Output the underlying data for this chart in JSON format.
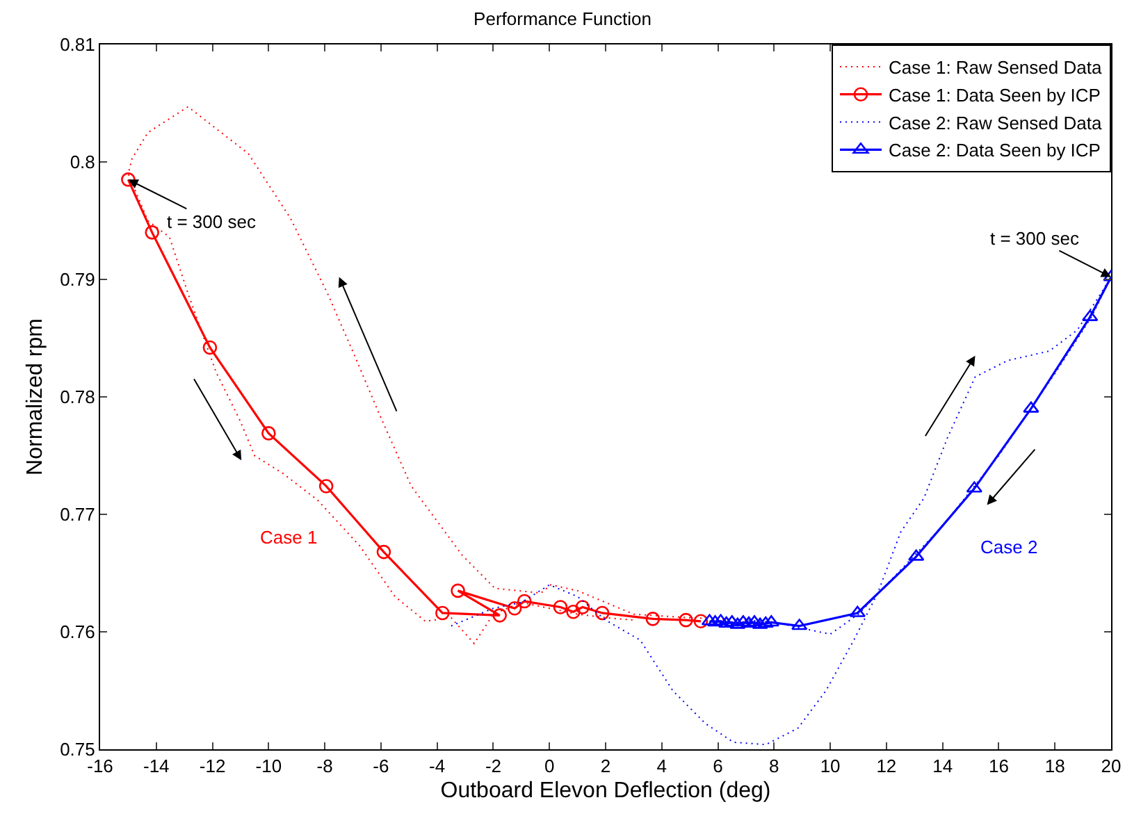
{
  "chart_data": {
    "type": "line",
    "title": "Performance Function",
    "xlabel": "Outboard Elevon Deflection (deg)",
    "ylabel": "Normalized rpm",
    "xlim": [
      -16,
      20
    ],
    "xticks": [
      -16,
      -14,
      -12,
      -10,
      -8,
      -6,
      -4,
      -2,
      0,
      2,
      4,
      6,
      8,
      10,
      12,
      14,
      16,
      18,
      20
    ],
    "ylim": [
      0.75,
      0.81
    ],
    "yticks": [
      0.75,
      0.76,
      0.77,
      0.78,
      0.79,
      0.8,
      0.81
    ],
    "grid": false,
    "legend": "top right",
    "series": [
      {
        "name": "Case 1: Raw Sensed Data",
        "color": "#ff0000",
        "line_style": "dotted",
        "marker": "none",
        "x": [
          7,
          5,
          3,
          1,
          0.05,
          -0.3,
          -1.94,
          -3.1,
          -4.92,
          -6.07,
          -6.9,
          -7.9,
          -9.22,
          -10.72,
          -12.87,
          -14.3,
          -14.86,
          -15,
          -14.3,
          -13.53,
          -12.87,
          -11.87,
          -11.04,
          -10.5,
          -9.5,
          -8.25,
          -6.75,
          -5.5,
          -4.42,
          -3.5,
          -2.68,
          -2,
          -1,
          0,
          1,
          2,
          3
        ],
        "values": [
          0.761,
          0.7612,
          0.7615,
          0.7635,
          0.764,
          0.7633,
          0.7637,
          0.7665,
          0.7724,
          0.7786,
          0.7833,
          0.7888,
          0.7952,
          0.8007,
          0.8047,
          0.8025,
          0.8003,
          0.799,
          0.795,
          0.7936,
          0.7888,
          0.7821,
          0.7781,
          0.775,
          0.7735,
          0.7712,
          0.7673,
          0.763,
          0.7609,
          0.7612,
          0.759,
          0.7615,
          0.7625,
          0.762,
          0.7615,
          0.7612,
          0.761
        ]
      },
      {
        "name": "Case 1: Data Seen by ICP",
        "color": "#ff0000",
        "line_style": "solid",
        "marker": "circle",
        "x": [
          5.39,
          4.86,
          3.68,
          1.88,
          1.18,
          0.85,
          0.39,
          -0.89,
          -1.24,
          -3.26,
          -1.77,
          -3.81,
          -5.9,
          -7.95,
          -10,
          -12.09,
          -14.15,
          -15
        ],
        "values": [
          0.7609,
          0.761,
          0.7611,
          0.7616,
          0.7621,
          0.7617,
          0.7621,
          0.7626,
          0.762,
          0.7635,
          0.7614,
          0.7616,
          0.7668,
          0.7724,
          0.7769,
          0.7842,
          0.794,
          0.7985
        ]
      },
      {
        "name": "Case 2: Raw Sensed Data",
        "color": "#0000ff",
        "line_style": "dotted",
        "marker": "none",
        "x": [
          -3.5,
          -2,
          -1,
          0,
          1,
          2,
          2.93,
          3.23,
          4.39,
          5.55,
          6.55,
          7.71,
          8.85,
          9.85,
          10.84,
          11.69,
          12.51,
          13.34,
          14.17,
          15.16,
          16.32,
          17.8,
          18.8,
          19.63,
          20,
          19.3,
          18,
          17,
          16,
          15,
          14,
          13,
          12,
          11,
          10,
          9,
          8,
          7
        ],
        "values": [
          0.7605,
          0.762,
          0.7625,
          0.764,
          0.763,
          0.761,
          0.7597,
          0.7593,
          0.755,
          0.7522,
          0.7506,
          0.7504,
          0.7518,
          0.755,
          0.7593,
          0.7633,
          0.7685,
          0.7714,
          0.7765,
          0.7817,
          0.7831,
          0.7839,
          0.7857,
          0.7888,
          0.7902,
          0.7868,
          0.782,
          0.7785,
          0.775,
          0.772,
          0.769,
          0.7665,
          0.764,
          0.7615,
          0.7598,
          0.7603,
          0.7608,
          0.761
        ]
      },
      {
        "name": "Case 2: Data Seen by ICP",
        "color": "#0000ff",
        "line_style": "solid",
        "marker": "triangle",
        "x": [
          5.7,
          5.9,
          6.1,
          6.3,
          6.5,
          6.7,
          6.9,
          7.1,
          7.3,
          7.5,
          7.7,
          7.9,
          8.9,
          10.97,
          13.06,
          15.13,
          17.15,
          19.25,
          20
        ],
        "values": [
          0.7609,
          0.7608,
          0.7609,
          0.7607,
          0.7608,
          0.7606,
          0.7608,
          0.7607,
          0.7608,
          0.7606,
          0.7607,
          0.7608,
          0.7605,
          0.7616,
          0.7664,
          0.7722,
          0.779,
          0.7868,
          0.7902
        ]
      }
    ],
    "annotations": [
      {
        "text": "t = 300 sec",
        "x": -15,
        "y": 0.7985
      },
      {
        "text": "t = 300 sec",
        "x": 20,
        "y": 0.7902
      },
      "Case 1",
      "Case 2"
    ]
  }
}
